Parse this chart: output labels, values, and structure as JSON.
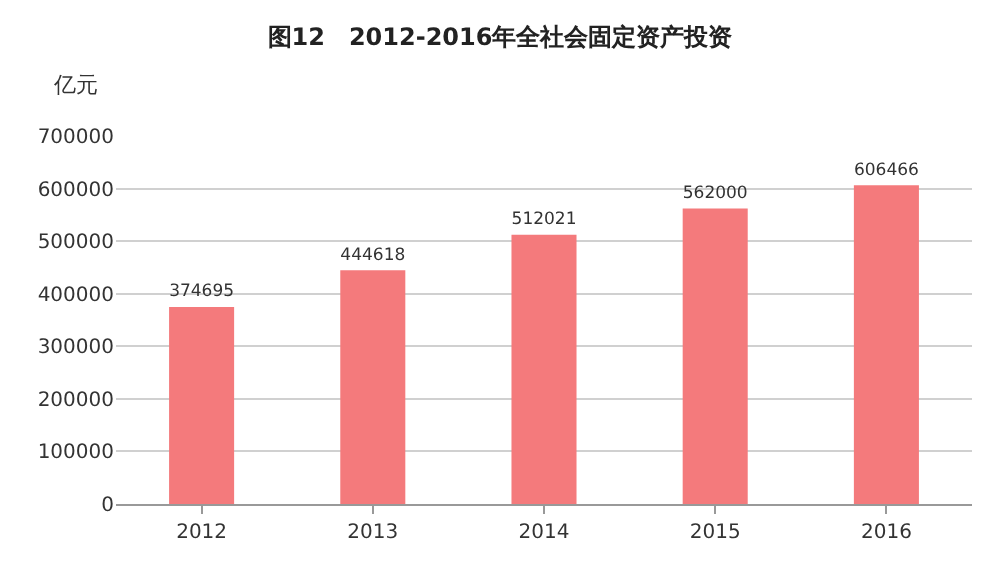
{
  "chart_data": {
    "type": "bar",
    "title": "图12　2012-2016年全社会固定资产投资",
    "ylabel": "亿元",
    "categories": [
      "2012",
      "2013",
      "2014",
      "2015",
      "2016"
    ],
    "values": [
      374695,
      444618,
      512021,
      562000,
      606466
    ],
    "color": "#f47a7c",
    "ylim": [
      0,
      700000
    ],
    "yticks": [
      0,
      100000,
      200000,
      300000,
      400000,
      500000,
      600000,
      700000
    ],
    "grid": "y",
    "data_labels": true
  }
}
